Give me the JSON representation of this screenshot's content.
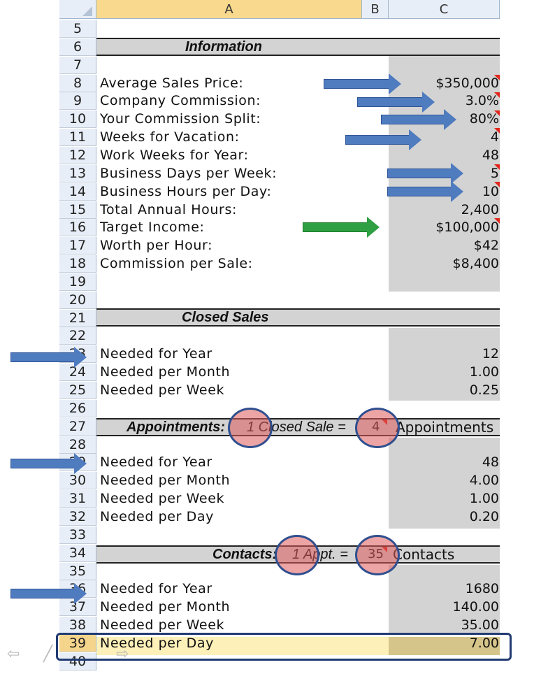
{
  "columns": [
    {
      "id": "corner",
      "label": ""
    },
    {
      "id": "A",
      "label": "A"
    },
    {
      "id": "B",
      "label": "B"
    },
    {
      "id": "C",
      "label": "C"
    }
  ],
  "row_numbers": [
    "5",
    "6",
    "7",
    "8",
    "9",
    "10",
    "11",
    "12",
    "13",
    "14",
    "15",
    "16",
    "17",
    "18",
    "19",
    "20",
    "21",
    "22",
    "23",
    "24",
    "25",
    "26",
    "27",
    "28",
    "29",
    "30",
    "31",
    "32",
    "33",
    "34",
    "35",
    "36",
    "37",
    "38",
    "39",
    "40"
  ],
  "information": {
    "header": "Information",
    "rows": [
      {
        "label": "Average Sales Price:",
        "value": "$350,000"
      },
      {
        "label": "Company Commission:",
        "value": "3.0%"
      },
      {
        "label": "Your Commission Split:",
        "value": "80%"
      },
      {
        "label": "Weeks for Vacation:",
        "value": "4"
      },
      {
        "label": "Work Weeks for Year:",
        "value": "48"
      },
      {
        "label": "Business Days per Week:",
        "value": "5"
      },
      {
        "label": "Business Hours per Day:",
        "value": "10"
      },
      {
        "label": "Total Annual Hours:",
        "value": "2,400"
      },
      {
        "label": "Target Income:",
        "value": "$100,000"
      },
      {
        "label": "Worth per Hour:",
        "value": "$42"
      },
      {
        "label": "Commission per Sale:",
        "value": "$8,400"
      }
    ]
  },
  "closed_sales": {
    "header": "Closed Sales",
    "rows": [
      {
        "label": "Needed for Year",
        "value": "12"
      },
      {
        "label": "Needed per Month",
        "value": "1.00"
      },
      {
        "label": "Needed per Week",
        "value": "0.25"
      }
    ]
  },
  "appointments": {
    "header_title": "Appointments:",
    "header_mid": "1 Closed Sale =",
    "header_value": "4",
    "header_tail": "Appointments",
    "rows": [
      {
        "label": "Needed for Year",
        "value": "48"
      },
      {
        "label": "Needed per Month",
        "value": "4.00"
      },
      {
        "label": "Needed per Week",
        "value": "1.00"
      },
      {
        "label": "Needed per Day",
        "value": "0.20"
      }
    ]
  },
  "contacts": {
    "header_title": "Contacts:",
    "header_mid": "1 Appt. =",
    "header_value": "35",
    "header_tail": "Contacts",
    "rows": [
      {
        "label": "Needed for Year",
        "value": "1680"
      },
      {
        "label": "Needed per Month",
        "value": "140.00"
      },
      {
        "label": "Needed per Week",
        "value": "35.00"
      },
      {
        "label": "Needed per Day",
        "value": "7.00"
      }
    ]
  },
  "colors": {
    "header_bg": "#e8eef7",
    "selected_header": "#f9d98d",
    "input_fill": "#d3d3d3",
    "arrow_blue": "#4f7bbf",
    "arrow_green": "#2ea043",
    "comment_marker": "#e0261b",
    "highlight_row": "#fdf0b9"
  }
}
